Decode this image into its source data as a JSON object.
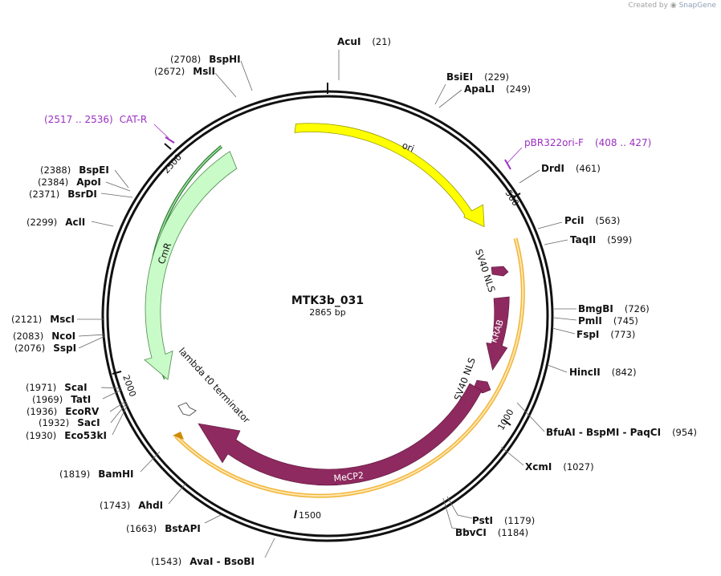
{
  "credit": {
    "prefix": "Created by",
    "brand": "SnapGene"
  },
  "plasmid": {
    "name": "MTK3b_031",
    "length_label": "2865 bp",
    "length": 2865
  },
  "ticks": [
    "500",
    "1000",
    "1500",
    "2000",
    "2500"
  ],
  "sites": [
    {
      "name": "AcuI",
      "pos": "(21)",
      "at": 21
    },
    {
      "name": "BsiEI",
      "pos": "(229)",
      "at": 229
    },
    {
      "name": "ApaLI",
      "pos": "(249)",
      "at": 249
    },
    {
      "name": "DrdI",
      "pos": "(461)",
      "at": 461
    },
    {
      "name": "PciI",
      "pos": "(563)",
      "at": 563
    },
    {
      "name": "TaqII",
      "pos": "(599)",
      "at": 599
    },
    {
      "name": "BmgBI",
      "pos": "(726)",
      "at": 726
    },
    {
      "name": "PmlI",
      "pos": "(745)",
      "at": 745
    },
    {
      "name": "FspI",
      "pos": "(773)",
      "at": 773
    },
    {
      "name": "HincII",
      "pos": "(842)",
      "at": 842
    },
    {
      "name": "BfuAI  -  BspMI  -  PaqCI",
      "pos": "(954)",
      "at": 954
    },
    {
      "name": "XcmI",
      "pos": "(1027)",
      "at": 1027
    },
    {
      "name": "PstI",
      "pos": "(1179)",
      "at": 1179
    },
    {
      "name": "BbvCI",
      "pos": "(1184)",
      "at": 1184
    },
    {
      "name": "AvaI  -  BsoBI",
      "pos": "(1543)",
      "at": 1543
    },
    {
      "name": "BstAPI",
      "pos": "(1663)",
      "at": 1663
    },
    {
      "name": "AhdI",
      "pos": "(1743)",
      "at": 1743
    },
    {
      "name": "BamHI",
      "pos": "(1819)",
      "at": 1819
    },
    {
      "name": "Eco53kI",
      "pos": "(1930)",
      "at": 1930
    },
    {
      "name": "SacI",
      "pos": "(1932)",
      "at": 1932
    },
    {
      "name": "EcoRV",
      "pos": "(1936)",
      "at": 1936
    },
    {
      "name": "TatI",
      "pos": "(1969)",
      "at": 1969
    },
    {
      "name": "ScaI",
      "pos": "(1971)",
      "at": 1971
    },
    {
      "name": "SspI",
      "pos": "(2076)",
      "at": 2076
    },
    {
      "name": "NcoI",
      "pos": "(2083)",
      "at": 2083
    },
    {
      "name": "MscI",
      "pos": "(2121)",
      "at": 2121
    },
    {
      "name": "AclI",
      "pos": "(2299)",
      "at": 2299
    },
    {
      "name": "BsrDI",
      "pos": "(2371)",
      "at": 2371
    },
    {
      "name": "ApoI",
      "pos": "(2384)",
      "at": 2384
    },
    {
      "name": "BspEI",
      "pos": "(2388)",
      "at": 2388
    },
    {
      "name": "MslI",
      "pos": "(2672)",
      "at": 2672
    },
    {
      "name": "BspHI",
      "pos": "(2708)",
      "at": 2708
    }
  ],
  "primers": [
    {
      "name": "pBR322ori-F",
      "range": "(408 .. 427)"
    },
    {
      "name": "CAT-R",
      "range": "(2517 .. 2536)"
    }
  ],
  "features": [
    {
      "name": "ori",
      "color": "#ffff00"
    },
    {
      "name": "SV40 NLS",
      "color": "#8e2a5f"
    },
    {
      "name": "KRAB",
      "color": "#8e2a5f"
    },
    {
      "name": "SV40 NLS",
      "color": "#8e2a5f"
    },
    {
      "name": "MeCP2",
      "color": "#8e2a5f"
    },
    {
      "name": "lambda t0 terminator",
      "color": "#ffffff"
    },
    {
      "name": "CmR",
      "color": "#c8fbc8"
    }
  ],
  "colors": {
    "primer": "#9b2fc2",
    "orf_outline": "#f0a818",
    "cm_outline": "#2e7d32"
  }
}
